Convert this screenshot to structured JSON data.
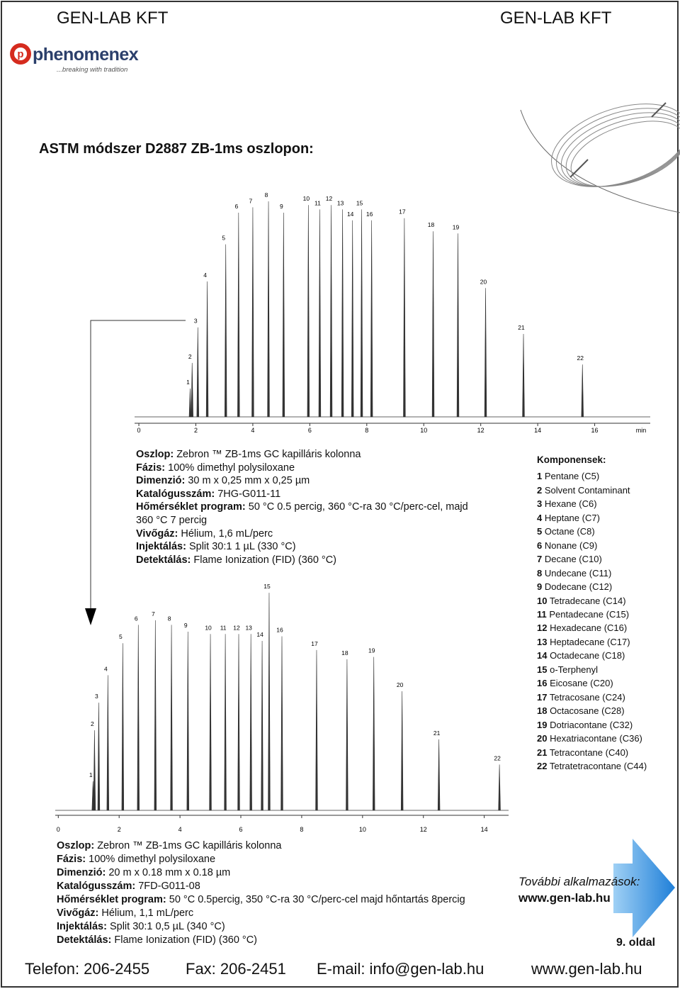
{
  "header": {
    "left": "GEN-LAB KFT",
    "right": "GEN-LAB KFT"
  },
  "logo": {
    "name": "phenomenex",
    "tagline": "...breaking with tradition"
  },
  "title": "ASTM módszer D2887 ZB-1ms oszlopon:",
  "chromatograms": [
    {
      "type": "chromatogram",
      "xlim": [
        -0.15,
        17.95
      ],
      "ylim": [
        0,
        100
      ],
      "xticks": [
        0,
        2,
        4,
        6,
        8,
        10,
        12,
        14,
        16
      ],
      "x_unit": "min",
      "peaks": {
        "labels": [
          "1",
          "2",
          "3",
          "4",
          "5",
          "6",
          "7",
          "8",
          "9",
          "10",
          "11",
          "12",
          "13",
          "14",
          "15",
          "16",
          "17",
          "18",
          "19",
          "20",
          "21",
          "22"
        ],
        "x": [
          1.8,
          1.87,
          2.07,
          2.4,
          3.05,
          3.5,
          4.0,
          4.55,
          5.08,
          5.95,
          6.35,
          6.75,
          7.15,
          7.5,
          7.82,
          8.17,
          9.32,
          10.33,
          11.2,
          12.17,
          13.5,
          15.57
        ],
        "values": [
          13,
          24.7,
          41,
          62,
          79,
          93.5,
          96,
          98.7,
          93.5,
          97,
          95,
          97,
          95,
          90,
          95,
          90,
          91,
          85,
          84,
          59,
          38,
          24
        ]
      }
    },
    {
      "type": "chromatogram",
      "xlim": [
        -0.1,
        14.8
      ],
      "ylim": [
        0,
        100
      ],
      "xticks": [
        0,
        2,
        4,
        6,
        8,
        10,
        12,
        14
      ],
      "peaks": {
        "labels": [
          "1",
          "2",
          "3",
          "4",
          "5",
          "6",
          "7",
          "8",
          "9",
          "10",
          "11",
          "12",
          "13",
          "14",
          "15",
          "16",
          "17",
          "18",
          "19",
          "20",
          "21",
          "22"
        ],
        "x": [
          1.14,
          1.19,
          1.33,
          1.63,
          2.12,
          2.63,
          3.19,
          3.72,
          4.26,
          5.0,
          5.49,
          5.93,
          6.33,
          6.7,
          6.93,
          7.35,
          8.49,
          9.49,
          10.37,
          11.3,
          12.51,
          14.5
        ],
        "values": [
          12.7,
          35,
          47,
          59,
          73,
          81,
          83,
          81,
          78,
          77,
          77,
          77,
          77,
          74,
          95,
          76,
          70,
          66,
          67,
          52,
          31,
          20
        ]
      }
    }
  ],
  "conditions_1": [
    {
      "label": "Oszlop:",
      "value": "Zebron ™ ZB-1ms GC kapilláris kolonna"
    },
    {
      "label": "Fázis:",
      "value": "100% dimethyl polysiloxane"
    },
    {
      "label": "Dimenzió:",
      "value": "30 m x 0,25 mm x 0,25 µm"
    },
    {
      "label": "Katalógusszám:",
      "value": "7HG-G011-11"
    },
    {
      "label": "Hőmérséklet program:",
      "value": "50 °C 0.5 percig, 360 °C-ra 30 °C/perc-cel, majd 360 °C 7 percig"
    },
    {
      "label": "Vivőgáz:",
      "value": "Hélium, 1,6 mL/perc"
    },
    {
      "label": "Injektálás:",
      "value": "Split 30:1 1 µL (330 °C)"
    },
    {
      "label": "Detektálás:",
      "value": "Flame Ionization (FID) (360 °C)"
    }
  ],
  "components": {
    "title": "Komponensek:",
    "items": [
      {
        "number": "1",
        "name": "Pentane (C5)"
      },
      {
        "number": "2",
        "name": "Solvent Contaminant"
      },
      {
        "number": "3",
        "name": "Hexane (C6)"
      },
      {
        "number": "4",
        "name": "Heptane (C7)"
      },
      {
        "number": "5",
        "name": "Octane (C8)"
      },
      {
        "number": "6",
        "name": "Nonane (C9)"
      },
      {
        "number": "7",
        "name": "Decane (C10)"
      },
      {
        "number": "8",
        "name": "Undecane (C11)"
      },
      {
        "number": "9",
        "name": "Dodecane (C12)"
      },
      {
        "number": "10",
        "name": "Tetradecane (C14)"
      },
      {
        "number": "11",
        "name": "Pentadecane (C15)"
      },
      {
        "number": "12",
        "name": "Hexadecane (C16)"
      },
      {
        "number": "13",
        "name": "Heptadecane (C17)"
      },
      {
        "number": "14",
        "name": "Octadecane (C18)"
      },
      {
        "number": "15",
        "name": "o-Terphenyl"
      },
      {
        "number": "16",
        "name": "Eicosane (C20)"
      },
      {
        "number": "17",
        "name": "Tetracosane (C24)"
      },
      {
        "number": "18",
        "name": "Octacosane (C28)"
      },
      {
        "number": "19",
        "name": "Dotriacontane (C32)"
      },
      {
        "number": "20",
        "name": "Hexatriacontane (C36)"
      },
      {
        "number": "21",
        "name": "Tetracontane (C40)"
      },
      {
        "number": "22",
        "name": "Tetratetracontane (C44)"
      }
    ]
  },
  "conditions_2": [
    {
      "label": "Oszlop:",
      "value": "Zebron ™ ZB-1ms GC kapilláris kolonna"
    },
    {
      "label": "Fázis:",
      "value": "100% dimethyl polysiloxane"
    },
    {
      "label": "Dimenzió:",
      "value": "20 m x 0.18 mm x 0.18 µm"
    },
    {
      "label": "Katalógusszám:",
      "value": "7FD-G011-08"
    },
    {
      "label": "Hőmérséklet program:",
      "value": "50 °C 0.5percig, 350 °C-ra 30 °C/perc-cel majd hőntartás 8percig"
    },
    {
      "label": "Vivőgáz:",
      "value": "Hélium, 1,1 mL/perc"
    },
    {
      "label": "Injektálás:",
      "value": "Split 30:1 0,5 µL (340 °C)"
    },
    {
      "label": "Detektálás:",
      "value": "Flame Ionization (FID) (360 °C)"
    }
  ],
  "more_apps": {
    "label": "További alkalmazások:",
    "url": "www.gen-lab.hu"
  },
  "page": "9. oldal",
  "footer": [
    "Telefon: 206-2455",
    "Fax: 206-2451",
    "E-mail: info@gen-lab.hu",
    "www.gen-lab.hu"
  ]
}
